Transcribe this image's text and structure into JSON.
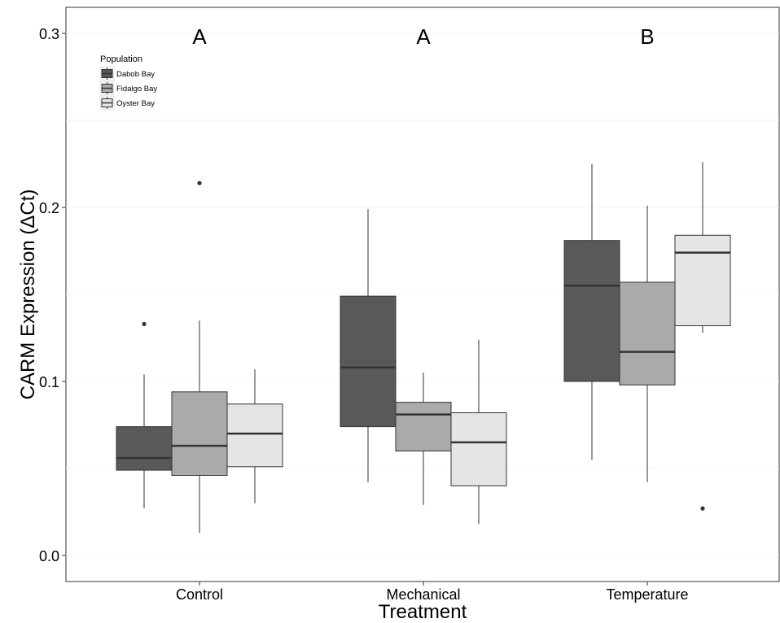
{
  "chart_data": {
    "type": "boxplot",
    "xlabel": "Treatment",
    "ylabel": "CARM Expression (ΔCt)",
    "ylim": [
      -0.015,
      0.315
    ],
    "yticks": [
      0.0,
      0.1,
      0.2,
      0.3
    ],
    "ytick_labels": [
      "0.0",
      "0.1",
      "0.2",
      "0.3"
    ],
    "grid": false,
    "categories": [
      "Control",
      "Mechanical",
      "Temperature"
    ],
    "group_letters": [
      "A",
      "A",
      "B"
    ],
    "legend": {
      "title": "Population",
      "position": "top-left",
      "entries": [
        "Dabob Bay",
        "Fidalgo Bay",
        "Oyster Bay"
      ]
    },
    "colors": {
      "Dabob Bay": "#595959",
      "Fidalgo Bay": "#aaaaaa",
      "Oyster Bay": "#e5e5e5"
    },
    "series": [
      {
        "name": "Dabob Bay",
        "boxes": [
          {
            "whisker_low": 0.027,
            "q1": 0.049,
            "median": 0.056,
            "q3": 0.074,
            "whisker_high": 0.104,
            "outliers": [
              0.133
            ]
          },
          {
            "whisker_low": 0.042,
            "q1": 0.074,
            "median": 0.108,
            "q3": 0.149,
            "whisker_high": 0.199,
            "outliers": []
          },
          {
            "whisker_low": 0.055,
            "q1": 0.1,
            "median": 0.155,
            "q3": 0.181,
            "whisker_high": 0.225,
            "outliers": []
          }
        ]
      },
      {
        "name": "Fidalgo Bay",
        "boxes": [
          {
            "whisker_low": 0.013,
            "q1": 0.046,
            "median": 0.063,
            "q3": 0.094,
            "whisker_high": 0.135,
            "outliers": [
              0.214
            ]
          },
          {
            "whisker_low": 0.029,
            "q1": 0.06,
            "median": 0.081,
            "q3": 0.088,
            "whisker_high": 0.105,
            "outliers": []
          },
          {
            "whisker_low": 0.042,
            "q1": 0.098,
            "median": 0.117,
            "q3": 0.157,
            "whisker_high": 0.201,
            "outliers": []
          }
        ]
      },
      {
        "name": "Oyster Bay",
        "boxes": [
          {
            "whisker_low": 0.03,
            "q1": 0.051,
            "median": 0.07,
            "q3": 0.087,
            "whisker_high": 0.107,
            "outliers": []
          },
          {
            "whisker_low": 0.018,
            "q1": 0.04,
            "median": 0.065,
            "q3": 0.082,
            "whisker_high": 0.124,
            "outliers": []
          },
          {
            "whisker_low": 0.128,
            "q1": 0.132,
            "median": 0.174,
            "q3": 0.184,
            "whisker_high": 0.226,
            "outliers": [
              0.027
            ]
          }
        ]
      }
    ]
  }
}
